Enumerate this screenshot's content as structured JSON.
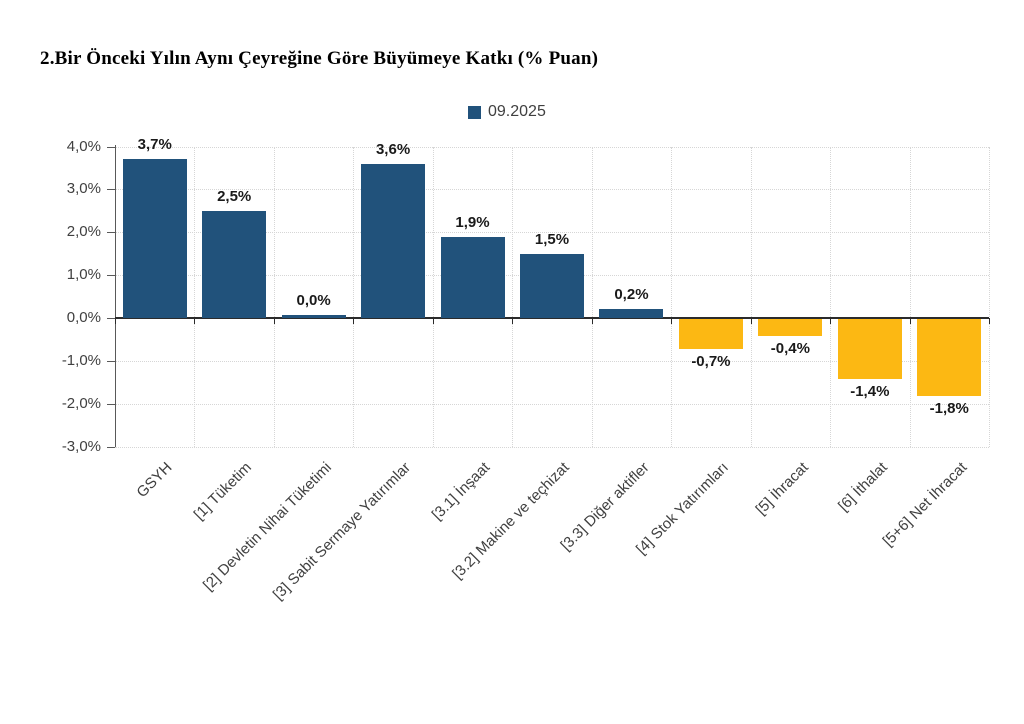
{
  "title": "2.Bir Önceki Yılın Aynı Çeyreğine Göre Büyümeye Katkı (% Puan)",
  "legend": {
    "label": "09.2025"
  },
  "colors": {
    "positive_bar": "#21527B",
    "negative_bar": "#FCB813",
    "axis": "#595959",
    "zero_line": "#2B2B2B",
    "gridline": "#D6D6D6",
    "data_label": "#1A1A1A",
    "tick_label": "#404040"
  },
  "chart_data": {
    "type": "bar",
    "title": "2.Bir Önceki Yılın Aynı Çeyreğine Göre Büyümeye Katkı (% Puan)",
    "series_name": "09.2025",
    "categories": [
      "GSYH",
      "[1] Tüketim",
      "[2] Devletin Nihai Tüketimi",
      "[3] Sabit Sermaye Yatırımlar",
      "[3.1] İnşaat",
      "[3.2] Makine ve teçhizat",
      "[3.3] Diğer aktifler",
      "[4] Stok Yatırımları",
      "[5] İhracat",
      "[6] İthalat",
      "[5+6] Net İhracat"
    ],
    "values": [
      3.7,
      2.5,
      0.0,
      3.6,
      1.9,
      1.5,
      0.2,
      -0.7,
      -0.4,
      -1.4,
      -1.8
    ],
    "value_labels": [
      "3,7%",
      "2,5%",
      "0,0%",
      "3,6%",
      "1,9%",
      "1,5%",
      "0,2%",
      "-0,7%",
      "-0,4%",
      "-1,4%",
      "-1,8%"
    ],
    "ylabel": "",
    "xlabel": "",
    "ylim": [
      -3.0,
      4.0
    ],
    "y_tick_values": [
      4,
      3,
      2,
      1,
      0,
      -1,
      -2,
      -3
    ],
    "y_tick_labels": [
      "4,0%",
      "3,0%",
      "2,0%",
      "1,0%",
      "0,0%",
      "-1,0%",
      "-2,0%",
      "-3,0%"
    ],
    "grid": true,
    "legend_position": "top-center",
    "bar_color_rule": "positive values dark blue, negative values amber"
  }
}
